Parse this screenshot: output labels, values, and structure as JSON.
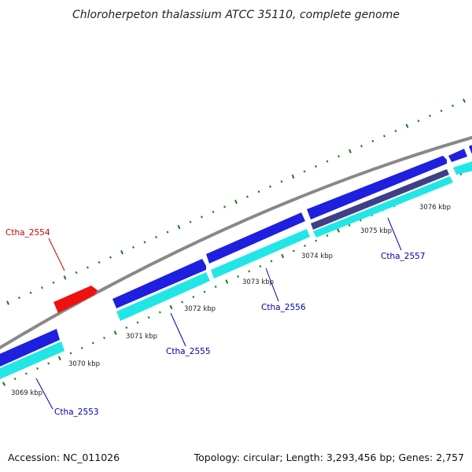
{
  "title": "Chloroherpeton thalassium ATCC 35110, complete genome",
  "footer": {
    "accession": "Accession: NC_011026",
    "summary": "Topology: circular; Length: 3,293,456 bp; Genes: 2,757"
  },
  "colors": {
    "backbone": "#888888",
    "cds_forward": "#1f1fe0",
    "cds_reverse_band": "#22e6e6",
    "rna": "#ee1111",
    "tick_mark": "#1a7a1a",
    "label_blue": "#0000aa",
    "label_red": "#cc0000"
  },
  "ticks": [
    {
      "label": "3069 kbp"
    },
    {
      "label": "3070 kbp"
    },
    {
      "label": "3071 kbp"
    },
    {
      "label": "3072 kbp"
    },
    {
      "label": "3073 kbp"
    },
    {
      "label": "3074 kbp"
    },
    {
      "label": "3075 kbp"
    },
    {
      "label": "3076 kbp"
    }
  ],
  "gene_labels": [
    {
      "name": "Ctha_2554",
      "type": "rna"
    },
    {
      "name": "Ctha_2553",
      "type": "cds"
    },
    {
      "name": "Ctha_2555",
      "type": "cds"
    },
    {
      "name": "Ctha_2556",
      "type": "cds"
    },
    {
      "name": "Ctha_2557",
      "type": "cds"
    }
  ]
}
